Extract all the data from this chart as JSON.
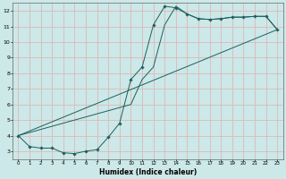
{
  "xlabel": "Humidex (Indice chaleur)",
  "ylabel": "",
  "bg_color": "#cce8e8",
  "grid_color": "#ddb8b8",
  "line_color": "#1a6060",
  "marker_color": "#1a6060",
  "xlim": [
    -0.5,
    23.5
  ],
  "ylim": [
    2.5,
    12.5
  ],
  "xticks": [
    0,
    1,
    2,
    3,
    4,
    5,
    6,
    7,
    8,
    9,
    10,
    11,
    12,
    13,
    14,
    15,
    16,
    17,
    18,
    19,
    20,
    21,
    22,
    23
  ],
  "yticks": [
    3,
    4,
    5,
    6,
    7,
    8,
    9,
    10,
    11,
    12
  ],
  "series1_x": [
    0,
    1,
    2,
    3,
    4,
    5,
    6,
    7,
    8,
    9,
    10,
    11,
    12,
    13,
    14,
    15,
    16,
    17,
    18,
    19,
    20,
    21,
    22,
    23
  ],
  "series1_y": [
    4.0,
    3.3,
    3.2,
    3.2,
    2.9,
    2.85,
    3.0,
    3.1,
    3.9,
    4.8,
    7.6,
    8.4,
    11.1,
    12.3,
    12.2,
    11.8,
    11.5,
    11.45,
    11.5,
    11.6,
    11.6,
    11.65,
    11.65,
    10.8
  ],
  "series2_x": [
    0,
    10,
    11,
    12,
    13,
    14,
    15,
    16,
    17,
    18,
    19,
    20,
    21,
    22,
    23
  ],
  "series2_y": [
    4.0,
    6.0,
    7.6,
    8.4,
    11.1,
    12.3,
    11.8,
    11.5,
    11.45,
    11.5,
    11.6,
    11.6,
    11.65,
    11.65,
    10.8
  ],
  "series3_x": [
    0,
    23
  ],
  "series3_y": [
    4.0,
    10.8
  ]
}
